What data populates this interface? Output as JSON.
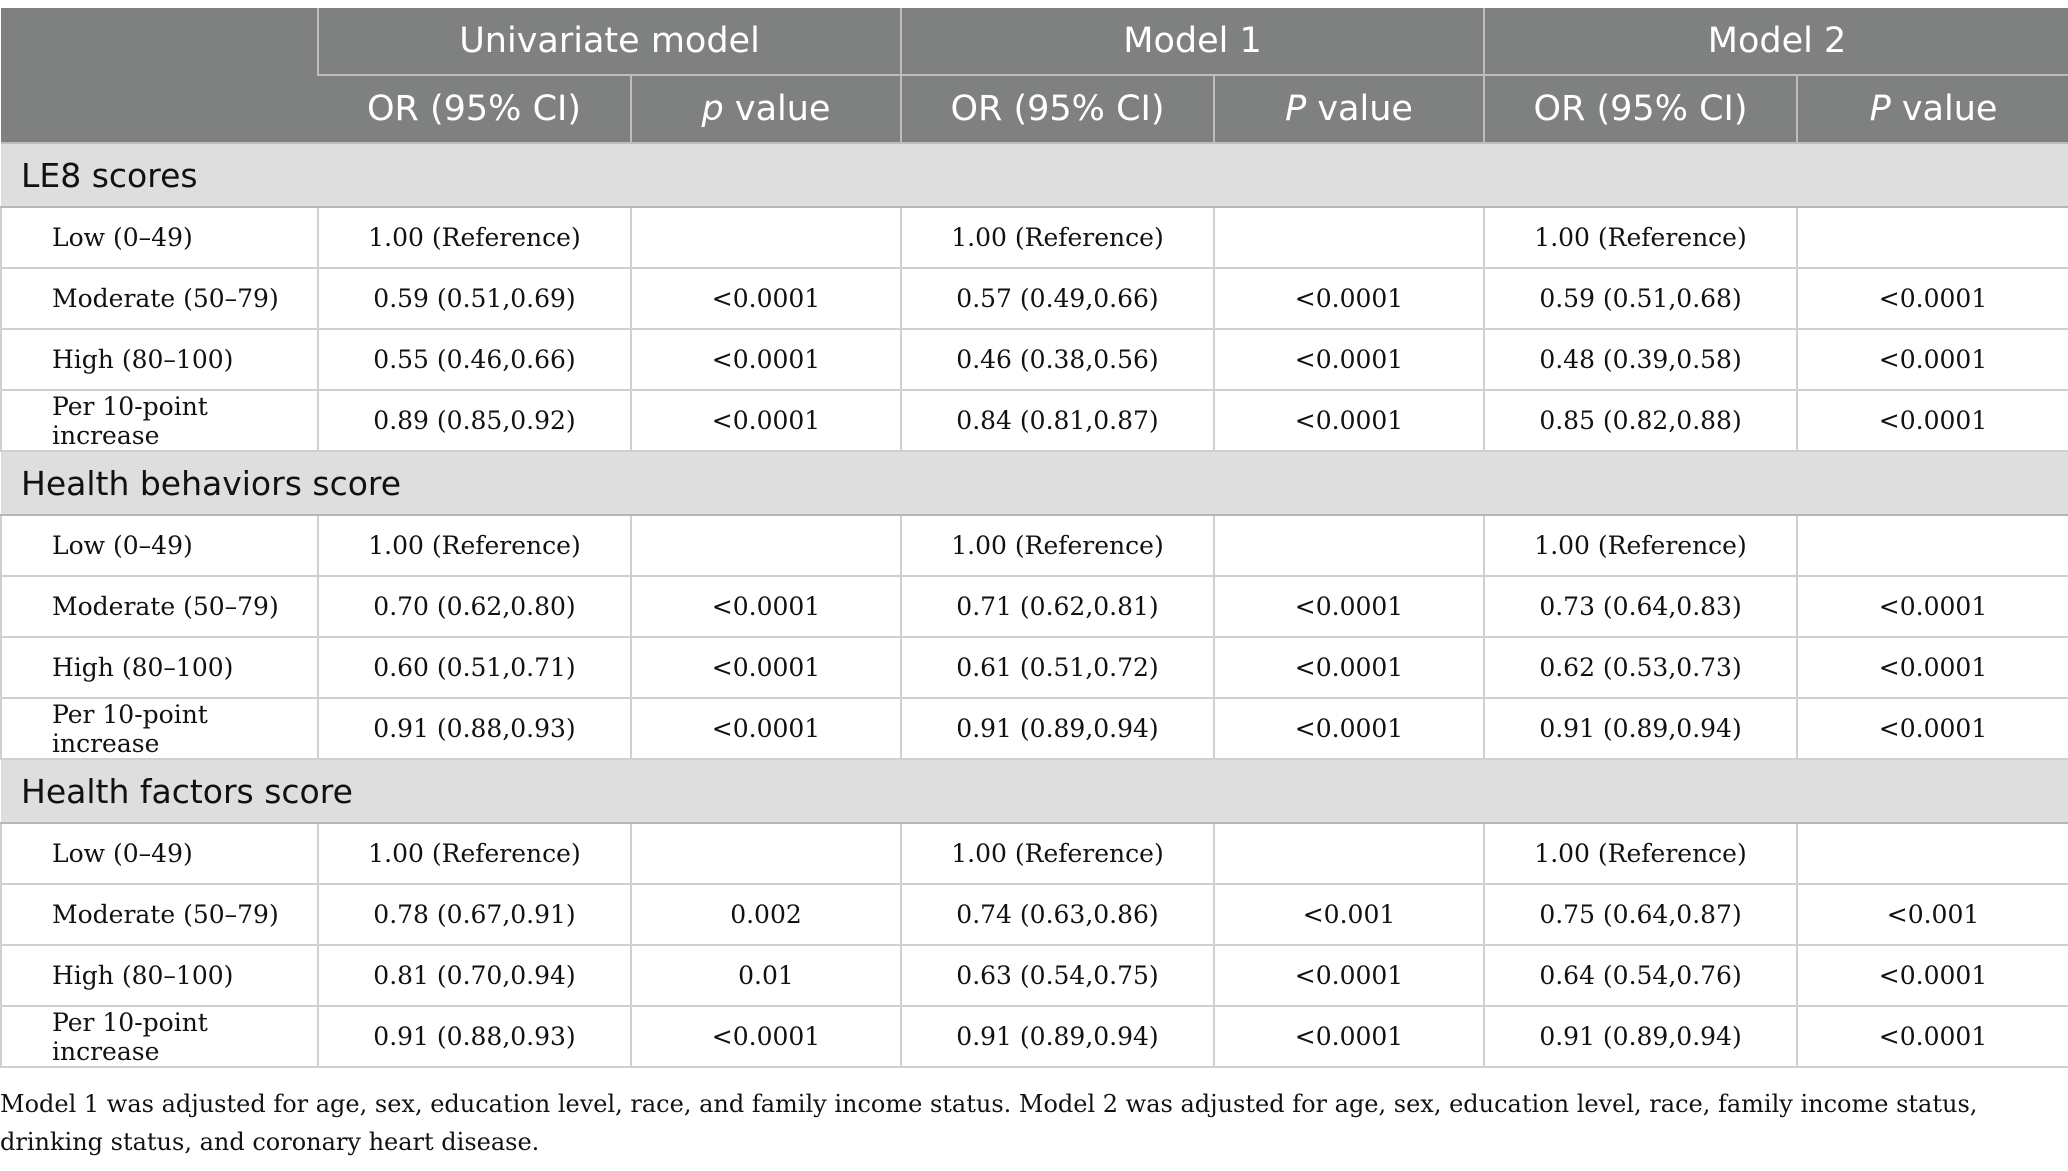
{
  "header": {
    "groups": [
      "Univariate model",
      "Model 1",
      "Model 2"
    ],
    "or_label": "OR (95% CI)",
    "p_labels": [
      {
        "italic": "p",
        "rest": " value"
      },
      {
        "italic": "P",
        "rest": " value"
      },
      {
        "italic": "P",
        "rest": " value"
      }
    ]
  },
  "sections": [
    {
      "title": "LE8 scores",
      "rows": [
        {
          "label": "Low (0–49)",
          "cells": [
            "1.00 (Reference)",
            "",
            "1.00 (Reference)",
            "",
            "1.00 (Reference)",
            ""
          ]
        },
        {
          "label": "Moderate (50–79)",
          "cells": [
            "0.59 (0.51,0.69)",
            "<0.0001",
            "0.57 (0.49,0.66)",
            "<0.0001",
            "0.59 (0.51,0.68)",
            "<0.0001"
          ]
        },
        {
          "label": "High (80–100)",
          "cells": [
            "0.55 (0.46,0.66)",
            "<0.0001",
            "0.46 (0.38,0.56)",
            "<0.0001",
            "0.48 (0.39,0.58)",
            "<0.0001"
          ]
        },
        {
          "label": "Per 10-point increase",
          "cells": [
            "0.89 (0.85,0.92)",
            "<0.0001",
            "0.84 (0.81,0.87)",
            "<0.0001",
            "0.85 (0.82,0.88)",
            "<0.0001"
          ]
        }
      ]
    },
    {
      "title": "Health behaviors score",
      "rows": [
        {
          "label": "Low (0–49)",
          "cells": [
            "1.00 (Reference)",
            "",
            "1.00 (Reference)",
            "",
            "1.00 (Reference)",
            ""
          ]
        },
        {
          "label": "Moderate (50–79)",
          "cells": [
            "0.70 (0.62,0.80)",
            "<0.0001",
            "0.71 (0.62,0.81)",
            "<0.0001",
            "0.73 (0.64,0.83)",
            "<0.0001"
          ]
        },
        {
          "label": "High (80–100)",
          "cells": [
            "0.60 (0.51,0.71)",
            "<0.0001",
            "0.61 (0.51,0.72)",
            "<0.0001",
            "0.62 (0.53,0.73)",
            "<0.0001"
          ]
        },
        {
          "label": "Per 10-point increase",
          "cells": [
            "0.91 (0.88,0.93)",
            "<0.0001",
            "0.91 (0.89,0.94)",
            "<0.0001",
            "0.91 (0.89,0.94)",
            "<0.0001"
          ]
        }
      ]
    },
    {
      "title": "Health factors score",
      "rows": [
        {
          "label": "Low (0–49)",
          "cells": [
            "1.00 (Reference)",
            "",
            "1.00 (Reference)",
            "",
            "1.00 (Reference)",
            ""
          ]
        },
        {
          "label": "Moderate (50–79)",
          "cells": [
            "0.78 (0.67,0.91)",
            "0.002",
            "0.74 (0.63,0.86)",
            "<0.001",
            "0.75 (0.64,0.87)",
            "<0.001"
          ]
        },
        {
          "label": "High (80–100)",
          "cells": [
            "0.81 (0.70,0.94)",
            "0.01",
            "0.63 (0.54,0.75)",
            "<0.0001",
            "0.64 (0.54,0.76)",
            "<0.0001"
          ]
        },
        {
          "label": "Per 10-point increase",
          "cells": [
            "0.91 (0.88,0.93)",
            "<0.0001",
            "0.91 (0.89,0.94)",
            "<0.0001",
            "0.91 (0.89,0.94)",
            "<0.0001"
          ]
        }
      ]
    }
  ],
  "footnote": "Model 1 was adjusted for age, sex, education level, race, and family income status. Model 2 was adjusted for age, sex, education level, race, family income status, drinking status, and coronary heart disease."
}
